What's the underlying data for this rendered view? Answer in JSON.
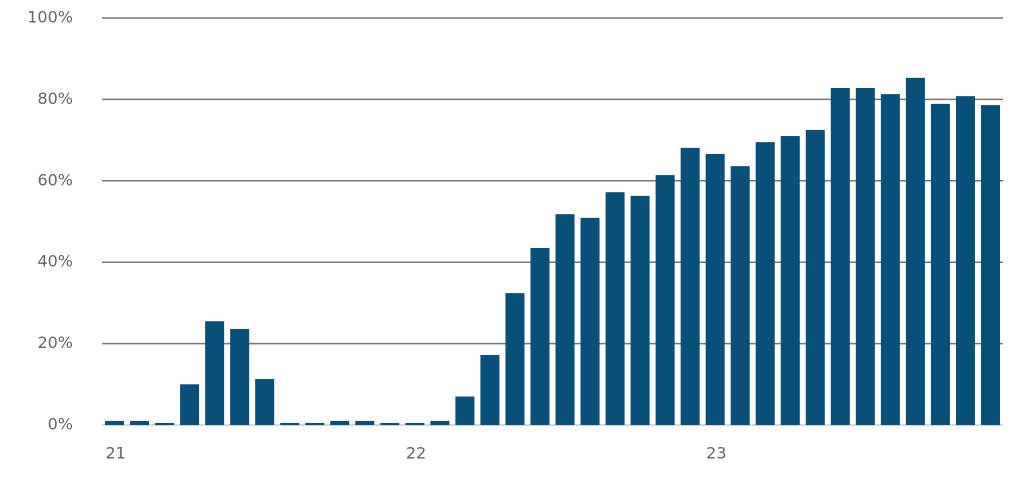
{
  "chart_data": {
    "type": "bar",
    "categories": [
      "21",
      null,
      null,
      null,
      null,
      null,
      null,
      null,
      null,
      null,
      null,
      null,
      "22",
      null,
      null,
      null,
      null,
      null,
      null,
      null,
      null,
      null,
      null,
      null,
      "23",
      null,
      null,
      null,
      null,
      null,
      null,
      null,
      null,
      null,
      null,
      null
    ],
    "values": [
      1,
      1,
      0.5,
      10,
      25.5,
      23.6,
      11.3,
      0.5,
      0.5,
      1,
      1,
      0.5,
      0.5,
      1,
      7,
      17.2,
      32.4,
      43.5,
      51.8,
      50.9,
      57.2,
      56.3,
      61.4,
      68.1,
      66.6,
      63.6,
      69.5,
      71,
      72.5,
      82.8,
      82.8,
      81.3,
      85.3,
      78.9,
      80.8,
      78.6
    ],
    "color": "#08507a",
    "ylim": [
      0,
      100
    ],
    "yticks": [
      {
        "value": 0,
        "label": "0%"
      },
      {
        "value": 20,
        "label": "20%"
      },
      {
        "value": 40,
        "label": "40%"
      },
      {
        "value": 60,
        "label": "60%"
      },
      {
        "value": 80,
        "label": "80%"
      },
      {
        "value": 100,
        "label": "100%"
      }
    ],
    "grid": true
  }
}
